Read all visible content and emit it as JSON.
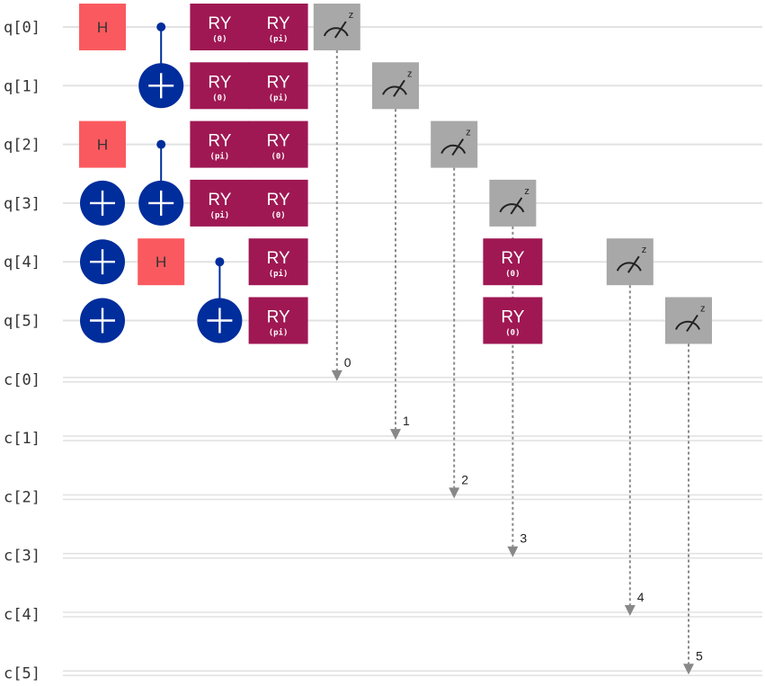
{
  "circuit": {
    "qubit_labels": [
      "q[0]",
      "q[1]",
      "q[2]",
      "q[3]",
      "q[4]",
      "q[5]"
    ],
    "clbit_labels": [
      "c[0]",
      "c[1]",
      "c[2]",
      "c[3]",
      "c[4]",
      "c[5]"
    ],
    "colors": {
      "wire": "#e2e2e2",
      "h_gate": "#fa5a5f",
      "h_text": "#333333",
      "ry_gate": "#9f1853",
      "cnot": "#002d9c",
      "measure": "#a8a8a8",
      "arrow": "#888888"
    },
    "gates": [
      {
        "type": "H",
        "label": "H",
        "qubit": 0,
        "column": 0
      },
      {
        "type": "CX",
        "control": 0,
        "target": 1,
        "column": 1
      },
      {
        "type": "RY",
        "label": "RY",
        "param": "(0)",
        "qubit": 0,
        "column": 2
      },
      {
        "type": "RY",
        "label": "RY",
        "param": "(pi)",
        "qubit": 0,
        "column": 3
      },
      {
        "type": "RY",
        "label": "RY",
        "param": "(0)",
        "qubit": 1,
        "column": 2
      },
      {
        "type": "RY",
        "label": "RY",
        "param": "(pi)",
        "qubit": 1,
        "column": 3
      },
      {
        "type": "H",
        "label": "H",
        "qubit": 2,
        "column": 0
      },
      {
        "type": "CX",
        "control": 2,
        "target": 3,
        "column": 1
      },
      {
        "type": "RY",
        "label": "RY",
        "param": "(pi)",
        "qubit": 2,
        "column": 2
      },
      {
        "type": "RY",
        "label": "RY",
        "param": "(0)",
        "qubit": 2,
        "column": 3
      },
      {
        "type": "X",
        "qubit": 3,
        "column": 0
      },
      {
        "type": "RY",
        "label": "RY",
        "param": "(pi)",
        "qubit": 3,
        "column": 2
      },
      {
        "type": "RY",
        "label": "RY",
        "param": "(0)",
        "qubit": 3,
        "column": 3
      },
      {
        "type": "X",
        "qubit": 4,
        "column": 0
      },
      {
        "type": "H",
        "label": "H",
        "qubit": 4,
        "column": 1
      },
      {
        "type": "CX",
        "control": 4,
        "target": 5,
        "column": 2
      },
      {
        "type": "RY",
        "label": "RY",
        "param": "(pi)",
        "qubit": 4,
        "column": 3
      },
      {
        "type": "RY",
        "label": "RY",
        "param": "(0)",
        "qubit": 4,
        "column": 7
      },
      {
        "type": "X",
        "qubit": 5,
        "column": 0
      },
      {
        "type": "RY",
        "label": "RY",
        "param": "(pi)",
        "qubit": 5,
        "column": 3
      },
      {
        "type": "RY",
        "label": "RY",
        "param": "(0)",
        "qubit": 5,
        "column": 7
      }
    ],
    "measurements": [
      {
        "qubit": 0,
        "clbit": 0,
        "column": 4,
        "bit_label": "0",
        "basis": "z"
      },
      {
        "qubit": 1,
        "clbit": 1,
        "column": 5,
        "bit_label": "1",
        "basis": "z"
      },
      {
        "qubit": 2,
        "clbit": 2,
        "column": 6,
        "bit_label": "2",
        "basis": "z"
      },
      {
        "qubit": 3,
        "clbit": 3,
        "column": 7,
        "bit_label": "3",
        "basis": "z"
      },
      {
        "qubit": 4,
        "clbit": 4,
        "column": 9,
        "bit_label": "4",
        "basis": "z"
      },
      {
        "qubit": 5,
        "clbit": 5,
        "column": 10,
        "bit_label": "5",
        "basis": "z"
      }
    ]
  }
}
